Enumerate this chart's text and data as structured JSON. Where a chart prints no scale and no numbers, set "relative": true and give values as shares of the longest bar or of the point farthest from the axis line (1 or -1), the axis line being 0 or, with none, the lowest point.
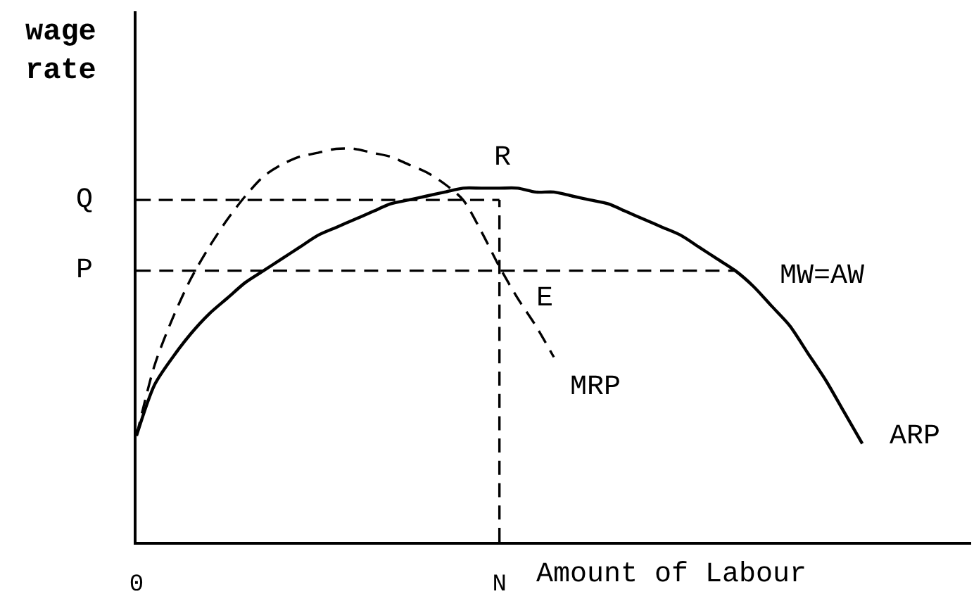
{
  "chart_data": {
    "type": "line",
    "relative": true,
    "xlabel": "Amount of Labour",
    "ylabel": "wage rate",
    "grid": false,
    "marker": "none",
    "categories": [
      "0",
      null,
      null,
      null,
      null,
      null,
      null,
      null,
      null,
      null,
      null,
      null,
      null,
      null,
      null,
      null,
      null,
      null,
      null,
      null,
      "N",
      null,
      null,
      null,
      null,
      null,
      null,
      null,
      null,
      null,
      null,
      null,
      null,
      null,
      null,
      null,
      null,
      null,
      null,
      null,
      null,
      null,
      null,
      null,
      null,
      null,
      null
    ],
    "series": [
      {
        "name": "MRP",
        "color": "#000000",
        "line_style": "dashed",
        "values": [
          0.27,
          0.45,
          0.57,
          0.67,
          0.75,
          0.82,
          0.88,
          0.93,
          0.96,
          0.98,
          0.99,
          1.0,
          1.0,
          0.99,
          0.98,
          0.96,
          0.94,
          0.91,
          0.87,
          0.79,
          0.7,
          0.62,
          0.55,
          0.47,
          null,
          null,
          null,
          null,
          null,
          null,
          null,
          null,
          null,
          null,
          null,
          null,
          null,
          null,
          null,
          null,
          null,
          null,
          null,
          null,
          null,
          null,
          null
        ]
      },
      {
        "name": "ARP",
        "color": "#000000",
        "line_style": "solid",
        "values": [
          0.27,
          0.4,
          0.47,
          0.53,
          0.58,
          0.62,
          0.66,
          0.69,
          0.72,
          0.75,
          0.78,
          0.8,
          0.82,
          0.84,
          0.86,
          0.87,
          0.88,
          0.89,
          0.9,
          0.9,
          0.9,
          0.9,
          0.89,
          0.89,
          0.88,
          0.87,
          0.86,
          0.84,
          0.82,
          0.8,
          0.78,
          0.75,
          0.72,
          0.69,
          0.65,
          0.6,
          0.55,
          0.48,
          0.41,
          0.33,
          0.25,
          null,
          null,
          null,
          null,
          null,
          null
        ]
      },
      {
        "color": "#000000",
        "line_style": "dashed",
        "values": [
          0.87,
          0.87,
          0.87,
          0.87,
          0.87,
          0.87,
          0.87,
          0.87,
          0.87,
          0.87,
          0.87,
          0.87,
          0.87,
          0.87,
          0.87,
          0.87,
          0.87,
          0.87,
          0.87,
          0.87,
          0.87,
          null,
          null,
          null,
          null,
          null,
          null,
          null,
          null,
          null,
          null,
          null,
          null,
          null,
          null,
          null,
          null,
          null,
          null,
          null,
          null,
          null,
          null,
          null,
          null,
          null,
          null
        ]
      },
      {
        "color": "#000000",
        "line_style": "dashed",
        "values": [
          0.69,
          0.69,
          0.69,
          0.69,
          0.69,
          0.69,
          0.69,
          0.69,
          0.69,
          0.69,
          0.69,
          0.69,
          0.69,
          0.69,
          0.69,
          0.69,
          0.69,
          0.69,
          0.69,
          0.69,
          0.69,
          0.69,
          0.69,
          0.69,
          0.69,
          0.69,
          0.69,
          0.69,
          0.69,
          0.69,
          0.69,
          0.69,
          0.69,
          0.69,
          null,
          null,
          null,
          null,
          null,
          null,
          null,
          null,
          null,
          null,
          null,
          null,
          null
        ]
      },
      {
        "color": "#000000",
        "line_style": "dashed",
        "x": [
          "N",
          "N"
        ],
        "values": [
          0,
          0.87
        ]
      }
    ],
    "annotations": [
      {
        "text": "Q",
        "x": "0",
        "y": 0.87
      },
      {
        "text": "P",
        "x": "0",
        "y": 0.69
      },
      {
        "text": "R",
        "x": "N",
        "y": 0.87
      },
      {
        "text": "E",
        "x": "N",
        "y": 0.69
      },
      "MW=AW"
    ]
  }
}
